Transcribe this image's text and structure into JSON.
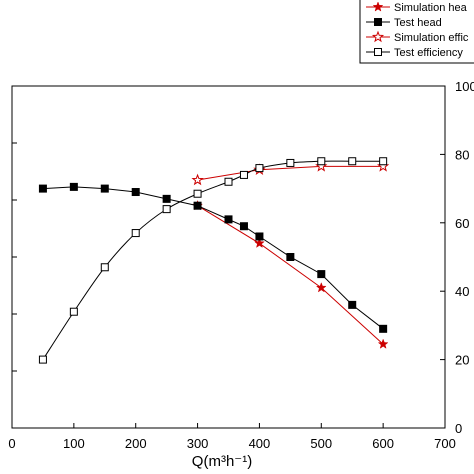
{
  "chart_data": {
    "type": "line",
    "xlabel": "Q(m³h⁻¹)",
    "x_axis": {
      "min": 0,
      "max": 700,
      "ticks": [
        0,
        100,
        200,
        300,
        400,
        500,
        600,
        700
      ]
    },
    "y_right_axis": {
      "min": 0,
      "max": 100,
      "ticks": [
        0,
        20,
        40,
        60,
        80,
        100
      ]
    },
    "y_left_axis": {
      "min": 0,
      "max": 100
    },
    "legend": {
      "position": "top-right",
      "entries": [
        {
          "label": "Simulation hea",
          "series": "simulation_head"
        },
        {
          "label": "Test head",
          "series": "test_head"
        },
        {
          "label": "Simulation effic",
          "series": "simulation_efficiency"
        },
        {
          "label": "Test efficiency",
          "series": "test_efficiency"
        }
      ]
    },
    "series": [
      {
        "key": "simulation_head",
        "axis": "left",
        "color": "#cc0000",
        "marker": "star-filled",
        "x": [
          300,
          400,
          500,
          600
        ],
        "y": [
          65,
          54,
          41,
          24.5
        ]
      },
      {
        "key": "test_head",
        "axis": "left",
        "color": "#000000",
        "marker": "square-filled",
        "x": [
          50,
          100,
          150,
          200,
          250,
          300,
          350,
          375,
          400,
          450,
          500,
          550,
          600
        ],
        "y": [
          70,
          70.5,
          70,
          69,
          67,
          65,
          61,
          59,
          56,
          50,
          45,
          36,
          29
        ]
      },
      {
        "key": "simulation_efficiency",
        "axis": "right",
        "color": "#cc0000",
        "marker": "star-open",
        "x": [
          300,
          400,
          500,
          600
        ],
        "y": [
          72.5,
          75.5,
          76.5,
          76.5
        ]
      },
      {
        "key": "test_efficiency",
        "axis": "right",
        "color": "#000000",
        "marker": "square-open",
        "x": [
          50,
          100,
          150,
          200,
          250,
          300,
          350,
          375,
          400,
          450,
          500,
          550,
          600
        ],
        "y": [
          20,
          34,
          47,
          57,
          64,
          68.5,
          72,
          74,
          76,
          77.5,
          78,
          78,
          78
        ]
      }
    ]
  }
}
